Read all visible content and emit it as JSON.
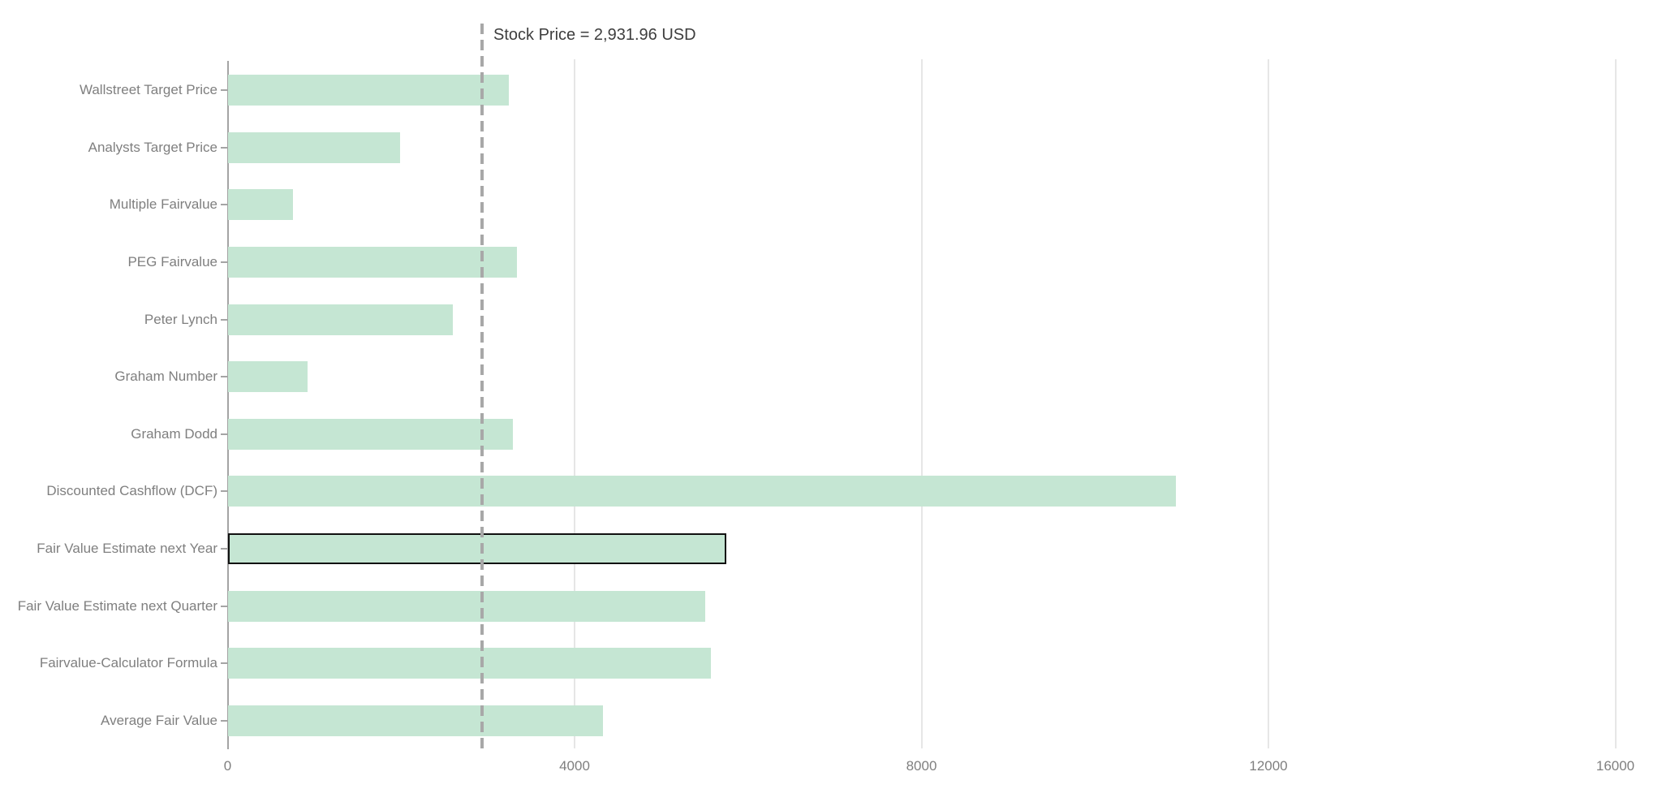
{
  "annotation": {
    "text": "Stock Price = 2,931.96 USD"
  },
  "colors": {
    "bar_fill": "#c5e6d3",
    "highlight_border": "#111111",
    "gridline": "#e6e6e6",
    "axis_line": "#a4a4a4",
    "reference_line": "#a8a8a8",
    "label_text": "#7f7f7f",
    "title_text": "#3e3e3e",
    "background": "#ffffff"
  },
  "chart_data": {
    "type": "bar",
    "orientation": "horizontal",
    "title": "Stock Price = 2,931.96 USD",
    "xlabel": "",
    "ylabel": "",
    "categories": [
      "Wallstreet Target Price",
      "Analysts Target Price",
      "Multiple Fairvalue",
      "PEG Fairvalue",
      "Peter Lynch",
      "Graham Number",
      "Graham Dodd",
      "Discounted Cashflow (DCF)",
      "Fair Value Estimate next Year",
      "Fair Value Estimate next Quarter",
      "Fairvalue-Calculator Formula",
      "Average Fair Value"
    ],
    "values": [
      3240,
      1980,
      750,
      3330,
      2595,
      920,
      3280,
      10930,
      5745,
      5500,
      5570,
      4325
    ],
    "highlighted_category": "Fair Value Estimate next Year",
    "reference_line": {
      "label": "Stock Price = 2,931.96 USD",
      "value": 2931.96,
      "style": "dashed"
    },
    "xticks": [
      0,
      4000,
      8000,
      12000,
      16000
    ],
    "xtick_labels": [
      "0",
      "4000",
      "8000",
      "12000",
      "16000"
    ],
    "xlim": [
      0,
      16500
    ],
    "grid": true,
    "legend": false
  }
}
